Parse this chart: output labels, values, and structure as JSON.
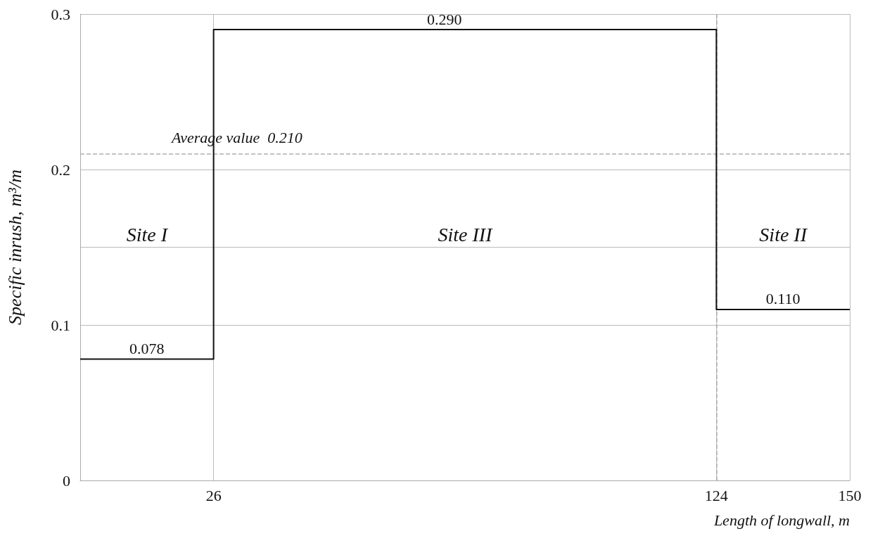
{
  "chart_data": {
    "type": "step",
    "xlabel": "Length of longwall, m",
    "ylabel": "Specific inrush, m³/m",
    "x": [
      0,
      26,
      124,
      150
    ],
    "series": [
      {
        "color": "#111111",
        "values": [
          0.078,
          0.29,
          0.11,
          0.11
        ]
      }
    ],
    "xlim": [
      0,
      150
    ],
    "xticks": [
      26,
      124,
      150
    ],
    "ylim": [
      0,
      0.3
    ],
    "yticks": [
      0,
      0.1,
      {
        "value": 0.15,
        "label": null
      },
      0.2,
      0.3
    ],
    "grid": true,
    "marker": "none",
    "line_style": "solid",
    "ref_lines": [
      {
        "axis": "y",
        "value": 0.21,
        "label": "Average value  0.210",
        "color": "#b0b0b0",
        "line_style": "dashed"
      },
      {
        "axis": "x",
        "value": 124,
        "label": null,
        "color": "#b0b0b0",
        "line_style": "dashed"
      }
    ],
    "annotations": [
      {
        "text": "0.078",
        "x": 13,
        "y": 0.078
      },
      {
        "text": "0.290",
        "x": 71,
        "y": 0.29
      },
      {
        "text": "0.110",
        "x": 137,
        "y": 0.11
      },
      "Site I",
      "Site III",
      "Site II"
    ]
  }
}
